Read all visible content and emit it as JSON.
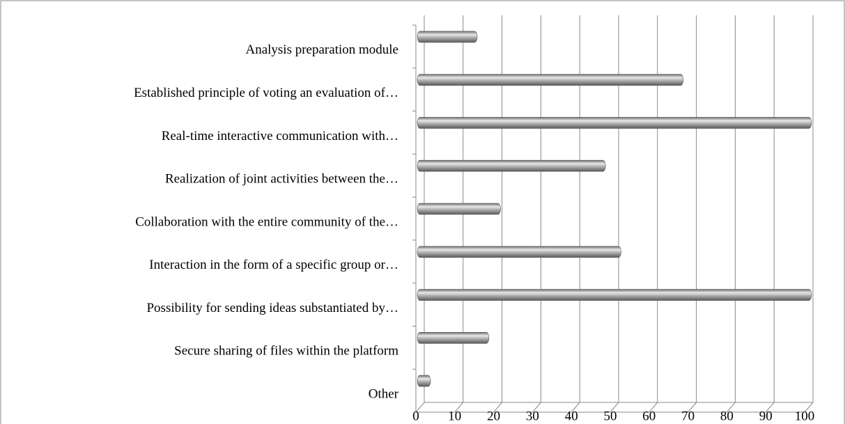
{
  "chart_data": {
    "type": "bar",
    "orientation": "horizontal",
    "style": "3d-cylinder",
    "categories": [
      "Analysis preparation module",
      "Established principle of voting an evaluation of…",
      "Real-time interactive communication with…",
      "Realization  of joint activities between the…",
      "Collaboration with the entire community of the…",
      "Interaction in the form of a specific group or…",
      "Possibility for sending ideas substantiated by…",
      "Secure sharing of files within the platform",
      "Other"
    ],
    "values": [
      14,
      67,
      100,
      47,
      20,
      51,
      100,
      17,
      2
    ],
    "color": "#a6a6a6",
    "xlim": [
      0,
      100
    ],
    "xticks": [
      0,
      10,
      20,
      30,
      40,
      50,
      60,
      70,
      80,
      90,
      100
    ],
    "grid": true
  }
}
